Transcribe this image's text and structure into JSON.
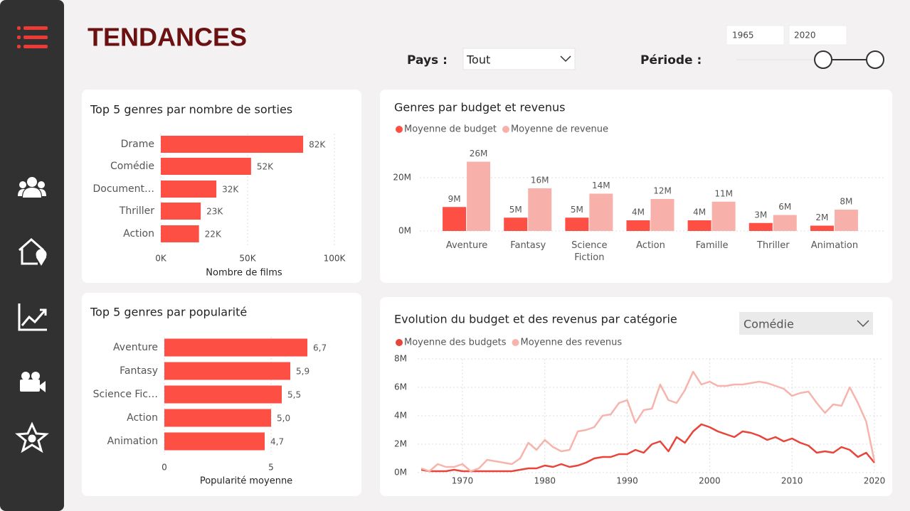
{
  "header": {
    "title": "TENDANCES",
    "country_label": "Pays :",
    "country_value": "Tout",
    "period_label": "Période :",
    "period_start": "1965",
    "period_end": "2020"
  },
  "chart_data": [
    {
      "type": "hbar",
      "title": "Top 5 genres par nombre de sorties",
      "xlabel": "Nombre de films",
      "categories": [
        "Drame",
        "Comédie",
        "Document…",
        "Thriller",
        "Action"
      ],
      "values": [
        82000,
        52000,
        32000,
        23000,
        22000
      ],
      "value_labels": [
        "82K",
        "52K",
        "32K",
        "23K",
        "22K"
      ],
      "color": "#fd4f44",
      "xlim": [
        0,
        100000
      ],
      "xticks": [
        {
          "value": 0,
          "label": "0K"
        },
        {
          "value": 50000,
          "label": "50K"
        },
        {
          "value": 100000,
          "label": "100K"
        }
      ],
      "grid": true
    },
    {
      "type": "hbar",
      "title": "Top 5 genres par popularité",
      "xlabel": "Popularité moyenne",
      "categories": [
        "Aventure",
        "Fantasy",
        "Science Fic…",
        "Action",
        "Animation"
      ],
      "values": [
        6.7,
        5.9,
        5.5,
        5.0,
        4.7
      ],
      "value_labels": [
        "6,7",
        "5,9",
        "5,5",
        "5,0",
        "4,7"
      ],
      "color": "#fd4f44",
      "xlim": [
        0,
        8
      ],
      "xticks": [
        0,
        5
      ],
      "grid": true
    },
    {
      "type": "bar",
      "title": "Genres par budget et revenus",
      "categories": [
        "Aventure",
        "Fantasy",
        "Science Fiction",
        "Action",
        "Famille",
        "Thriller",
        "Animation"
      ],
      "series": [
        {
          "name": "Moyenne de budget",
          "color": "#fd4f44",
          "values": [
            9000000,
            5000000,
            5000000,
            4000000,
            4000000,
            3000000,
            2000000
          ],
          "value_labels": [
            "9M",
            "5M",
            "5M",
            "4M",
            "4M",
            "3M",
            "2M"
          ]
        },
        {
          "name": "Moyenne de revenue",
          "color": "#f8b1aa",
          "values": [
            26000000,
            16000000,
            14000000,
            12000000,
            11000000,
            6000000,
            8000000
          ],
          "value_labels": [
            "26M",
            "16M",
            "14M",
            "12M",
            "11M",
            "6M",
            "8M"
          ]
        }
      ],
      "ylim": [
        0,
        30000000
      ],
      "yticks": [
        {
          "value": 0,
          "label": "0M"
        },
        {
          "value": 20000000,
          "label": "20M"
        }
      ],
      "grid": true
    },
    {
      "type": "line",
      "title": "Evolution du budget et des revenus par catégorie",
      "filter": "Comédie",
      "x": [
        1965,
        1966,
        1967,
        1968,
        1969,
        1970,
        1971,
        1972,
        1973,
        1974,
        1975,
        1976,
        1977,
        1978,
        1979,
        1980,
        1981,
        1982,
        1983,
        1984,
        1985,
        1986,
        1987,
        1988,
        1989,
        1990,
        1991,
        1992,
        1993,
        1994,
        1995,
        1996,
        1997,
        1998,
        1999,
        2000,
        2001,
        2002,
        2003,
        2004,
        2005,
        2006,
        2007,
        2008,
        2009,
        2010,
        2011,
        2012,
        2013,
        2014,
        2015,
        2016,
        2017,
        2018,
        2019,
        2020
      ],
      "series": [
        {
          "name": "Moyenne des budgets",
          "color": "#e8443a",
          "values": [
            200000,
            100000,
            100000,
            100000,
            200000,
            100000,
            100000,
            100000,
            100000,
            100000,
            100000,
            100000,
            200000,
            300000,
            300000,
            500000,
            400000,
            600000,
            400000,
            500000,
            700000,
            1000000,
            1100000,
            1100000,
            1300000,
            1300000,
            1600000,
            1400000,
            2000000,
            2200000,
            1500000,
            2500000,
            2100000,
            2900000,
            3400000,
            3200000,
            2900000,
            2700000,
            2500000,
            2900000,
            2800000,
            2600000,
            2300000,
            2500000,
            2200000,
            2400000,
            2100000,
            1900000,
            1400000,
            1500000,
            1400000,
            1800000,
            1600000,
            1100000,
            1400000,
            700000
          ]
        },
        {
          "name": "Moyenne des revenus",
          "color": "#f7b4ad",
          "values": [
            300000,
            100000,
            600000,
            400000,
            400000,
            600000,
            100000,
            300000,
            900000,
            800000,
            700000,
            600000,
            1000000,
            2100000,
            1600000,
            2300000,
            1800000,
            1500000,
            1600000,
            2900000,
            3000000,
            3200000,
            4000000,
            4100000,
            4900000,
            5100000,
            3500000,
            4400000,
            4500000,
            6200000,
            5100000,
            4900000,
            5800000,
            7100000,
            6200000,
            6400000,
            6100000,
            6100000,
            6200000,
            6200000,
            6300000,
            6400000,
            6300000,
            6100000,
            5900000,
            5400000,
            5600000,
            5700000,
            4900000,
            4200000,
            4800000,
            4700000,
            6000000,
            4900000,
            3600000,
            800000
          ]
        }
      ],
      "xlim": [
        1965,
        2020
      ],
      "xticks": [
        1970,
        1980,
        1990,
        2000,
        2010,
        2020
      ],
      "ylim": [
        0,
        8000000
      ],
      "yticks": [
        {
          "value": 0,
          "label": "0M"
        },
        {
          "value": 2000000,
          "label": "2M"
        },
        {
          "value": 4000000,
          "label": "4M"
        },
        {
          "value": 6000000,
          "label": "6M"
        },
        {
          "value": 8000000,
          "label": "8M"
        }
      ],
      "grid": true
    }
  ]
}
